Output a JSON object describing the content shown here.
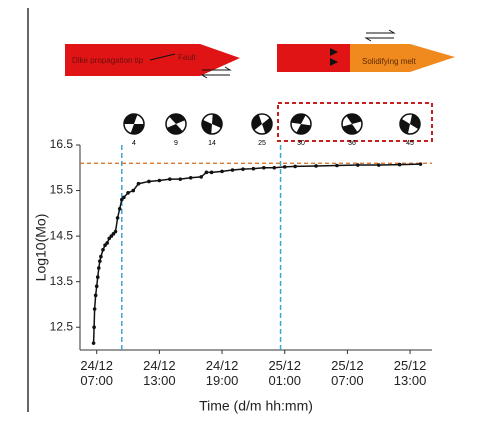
{
  "diagrams": {
    "left_tip": "Dike propagation tip",
    "left_fault": "Fault",
    "right_melt": "Solidifying melt"
  },
  "beachballs": {
    "labels": [
      4,
      9,
      14,
      25,
      30,
      36,
      45
    ]
  },
  "chart_data": {
    "type": "line",
    "xlabel": "Time (d/m hh:mm)",
    "ylabel": "Log10(Mo)",
    "x": [
      6.7,
      6.75,
      6.8,
      6.9,
      7.0,
      7.1,
      7.2,
      7.3,
      7.4,
      7.6,
      7.8,
      8.0,
      8.2,
      8.4,
      8.6,
      8.8,
      9.0,
      9.2,
      9.4,
      9.6,
      10.0,
      10.5,
      11,
      12,
      13,
      14,
      15,
      16,
      17,
      17.5,
      18,
      19,
      20,
      21,
      22,
      23,
      24,
      25,
      26,
      28,
      30,
      32,
      34,
      36,
      38
    ],
    "values": [
      12.15,
      12.5,
      12.9,
      13.2,
      13.4,
      13.6,
      13.8,
      13.95,
      14.05,
      14.2,
      14.3,
      14.35,
      14.45,
      14.5,
      14.55,
      14.6,
      14.9,
      15.1,
      15.3,
      15.35,
      15.45,
      15.5,
      15.65,
      15.7,
      15.72,
      15.75,
      15.75,
      15.78,
      15.8,
      15.9,
      15.9,
      15.92,
      15.95,
      15.97,
      15.98,
      16.0,
      16.0,
      16.02,
      16.03,
      16.04,
      16.05,
      16.06,
      16.06,
      16.07,
      16.08
    ],
    "color": "#111111",
    "xlim": [
      5.4,
      39.1
    ],
    "ylim": [
      12,
      16.5
    ],
    "xticks": [
      {
        "value": 7,
        "label": "24/12 07:00"
      },
      {
        "value": 13,
        "label": "24/12 13:00"
      },
      {
        "value": 19,
        "label": "24/12 19:00"
      },
      {
        "value": 25,
        "label": "25/12 01:00"
      },
      {
        "value": 31,
        "label": "25/12 07:00"
      },
      {
        "value": 37,
        "label": "25/12 13:00"
      }
    ],
    "yticks": [
      12.5,
      13.5,
      14.5,
      15.5,
      16.5
    ],
    "vlines": [
      9.4,
      24.6
    ],
    "vline_color": "#3aa6d8",
    "hline": 16.1,
    "hline_color": "#d2691e"
  }
}
